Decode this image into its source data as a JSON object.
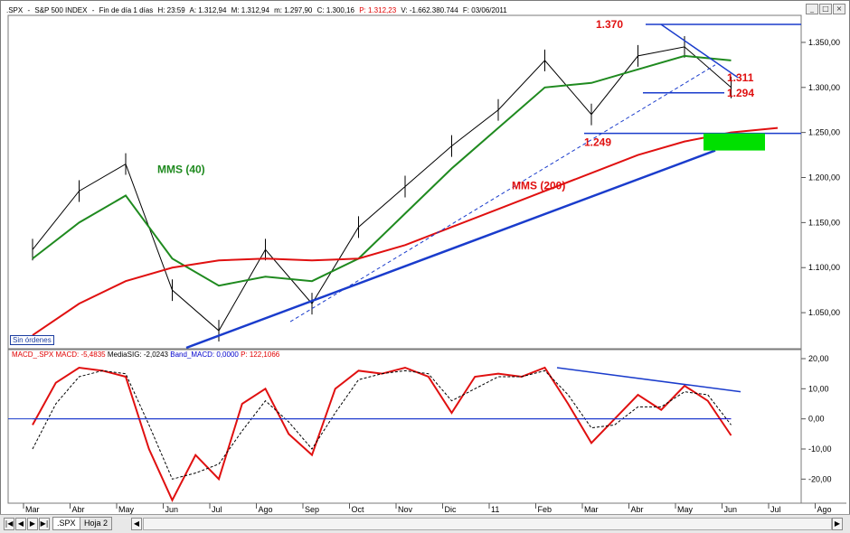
{
  "header": {
    "symbol": ".SPX",
    "name": "S&P 500 INDEX",
    "period": "Fin de día 1 días",
    "hour": "H: 23:59",
    "open": "A: 1.312,94",
    "high": "M: 1.312,94",
    "low": "m: 1.297,90",
    "close": "C: 1.300,16",
    "change": "P: 1.312,23",
    "volume": "V: -1.662.380.744",
    "date": "F: 03/06/2011",
    "colors": {
      "default": "#000000",
      "change": "#e00000"
    }
  },
  "window_buttons": [
    "minimize-icon",
    "maximize-icon",
    "close-icon"
  ],
  "sin_ordenes": "Sin órdenes",
  "macd_header": {
    "title": "MACD_.SPX",
    "macd": "MACD: -5,4835",
    "signal": "MediaSIG: -2,0243",
    "band": "Band_MACD: 0,0000",
    "p": "P: 122,1066"
  },
  "x_axis": [
    "Mar",
    "Abr",
    "May",
    "Jun",
    "Jul",
    "Ago",
    "Sep",
    "Oct",
    "Nov",
    "Dic",
    "11",
    "Feb",
    "Mar",
    "Abr",
    "May",
    "Jun",
    "Jul",
    "Ago"
  ],
  "price_ticks": [
    "1.350,00",
    "1.300,00",
    "1.250,00",
    "1.200,00",
    "1.150,00",
    "1.100,00",
    "1.050,00"
  ],
  "macd_ticks": [
    "20,00",
    "10,00",
    "0,00",
    "-10,00",
    "-20,00"
  ],
  "tabs": {
    "nav": [
      "first-icon",
      "prev-icon",
      "next-icon",
      "last-icon"
    ],
    "sheets": [
      ".SPX",
      "Hoja 2"
    ]
  },
  "annotations": {
    "a1370": "1.370",
    "a1311": "1.311",
    "a1294": "1.294",
    "a1249": "1.249",
    "mms40": "MMS (40)",
    "mms200": "MMS (200)"
  },
  "chart_data": [
    {
      "type": "line",
      "title": "S&P 500 INDEX",
      "categories": [
        "Mar",
        "Abr",
        "May",
        "Jun",
        "Jul",
        "Ago",
        "Sep",
        "Oct",
        "Nov",
        "Dic",
        "11",
        "Feb",
        "Mar",
        "Abr",
        "May",
        "Jun",
        "Jul",
        "Ago"
      ],
      "ylim": [
        1010,
        1380
      ],
      "series": [
        {
          "name": ".SPX",
          "color": "#000000",
          "x": [
            0,
            1,
            2,
            3,
            4,
            5,
            6,
            7,
            8,
            9,
            10,
            11,
            12,
            13,
            14,
            15
          ],
          "values": [
            1120,
            1185,
            1215,
            1075,
            1030,
            1120,
            1060,
            1145,
            1190,
            1235,
            1275,
            1330,
            1270,
            1335,
            1345,
            1300
          ]
        },
        {
          "name": "MMS (40)",
          "color": "#1f8a1f",
          "x": [
            0,
            1,
            2,
            3,
            4,
            5,
            6,
            7,
            8,
            9,
            10,
            11,
            12,
            13,
            14,
            15
          ],
          "values": [
            1110,
            1150,
            1180,
            1110,
            1080,
            1090,
            1085,
            1110,
            1160,
            1210,
            1255,
            1300,
            1305,
            1320,
            1335,
            1330
          ]
        },
        {
          "name": "MMS (200)",
          "color": "#e01010",
          "x": [
            0,
            1,
            2,
            3,
            4,
            5,
            6,
            7,
            8,
            9,
            10,
            11,
            12,
            13,
            14,
            15,
            16
          ],
          "values": [
            1025,
            1060,
            1085,
            1100,
            1108,
            1110,
            1108,
            1110,
            1125,
            1145,
            1165,
            1185,
            1205,
            1225,
            1240,
            1250,
            1255
          ]
        }
      ],
      "annotations": [
        "1.370",
        "1.311",
        "1.294",
        "1.249",
        "MMS (40)",
        "MMS (200)"
      ]
    },
    {
      "type": "line",
      "title": "MACD_.SPX",
      "categories": [
        "Mar",
        "Abr",
        "May",
        "Jun",
        "Jul",
        "Ago",
        "Sep",
        "Oct",
        "Nov",
        "Dic",
        "11",
        "Feb",
        "Mar",
        "Abr",
        "May",
        "Jun",
        "Jul",
        "Ago"
      ],
      "ylim": [
        -28,
        23
      ],
      "series": [
        {
          "name": "MACD",
          "color": "#e01010",
          "x": [
            0,
            0.5,
            1,
            1.5,
            2,
            2.5,
            3,
            3.5,
            4,
            4.5,
            5,
            5.5,
            6,
            6.5,
            7,
            7.5,
            8,
            8.5,
            9,
            9.5,
            10,
            10.5,
            11,
            11.5,
            12,
            12.5,
            13,
            13.5,
            14,
            14.5,
            15
          ],
          "values": [
            -2,
            12,
            17,
            16,
            14,
            -10,
            -27,
            -12,
            -20,
            5,
            10,
            -5,
            -12,
            10,
            16,
            15,
            17,
            14,
            2,
            14,
            15,
            14,
            17,
            5,
            -8,
            0,
            8,
            3,
            11,
            6,
            -5.5
          ]
        },
        {
          "name": "MediaSIG",
          "color": "#000000",
          "x": [
            0,
            0.5,
            1,
            1.5,
            2,
            2.5,
            3,
            3.5,
            4,
            4.5,
            5,
            5.5,
            6,
            6.5,
            7,
            7.5,
            8,
            8.5,
            9,
            9.5,
            10,
            10.5,
            11,
            11.5,
            12,
            12.5,
            13,
            13.5,
            14,
            14.5,
            15
          ],
          "values": [
            -10,
            5,
            14,
            16,
            15,
            -2,
            -20,
            -18,
            -15,
            -4,
            6,
            -1,
            -10,
            2,
            13,
            15,
            16,
            15,
            6,
            10,
            14,
            14,
            16,
            8,
            -3,
            -2,
            4,
            4,
            9,
            8,
            -2
          ]
        },
        {
          "name": "Band_MACD",
          "color": "#0000cc",
          "x": [
            0,
            15
          ],
          "values": [
            0,
            0
          ]
        }
      ]
    }
  ]
}
